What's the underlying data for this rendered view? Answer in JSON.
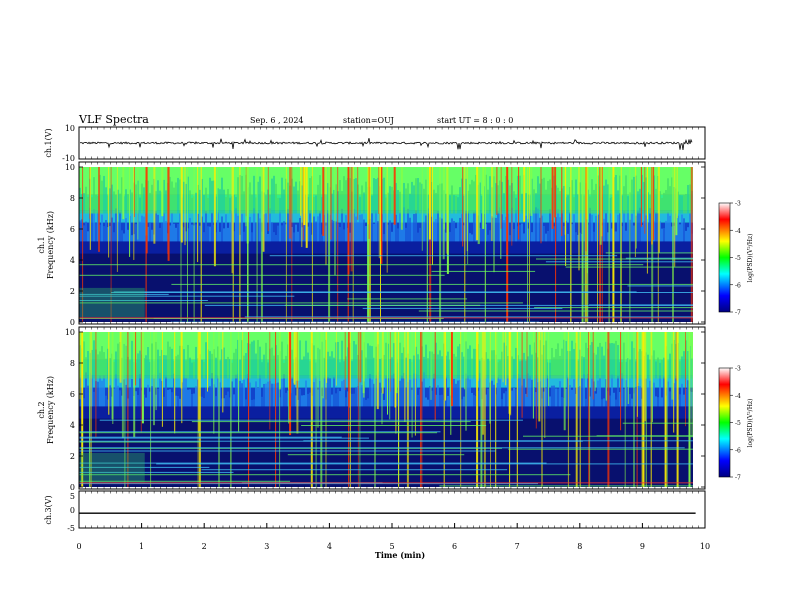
{
  "header": {
    "title": "VLF Spectra",
    "date": "Sep. 6 , 2024",
    "station": "station=OUJ",
    "start": "start UT =  8 : 0 : 0"
  },
  "chart_data": [
    {
      "type": "line",
      "id": "ch1-waveform",
      "ylabel": "ch.1(V)",
      "ylim": [
        -10,
        10
      ],
      "y_ticks": [
        "10",
        "-10"
      ],
      "description_values": {
        "baseline": 0,
        "noise_amplitude": 1.2
      }
    },
    {
      "type": "heatmap",
      "id": "ch1-spectrogram",
      "ylabel": "ch.1\nFrequency (kHz)",
      "ylabel_lines": [
        "ch.1",
        "Frequency (kHz)"
      ],
      "ylim": [
        0,
        10
      ],
      "y_ticks": [
        "0",
        "2",
        "4",
        "6",
        "8",
        "10"
      ],
      "colorbar": {
        "label": "log(PSD)(V²/Hz)",
        "range": [
          -7,
          -3
        ],
        "ticks": [
          "-3",
          "-4",
          "-5",
          "-6",
          "-7"
        ],
        "colors": [
          "#ffffff",
          "#ff0000",
          "#ffff00",
          "#00ff00",
          "#00ffff",
          "#0000ff",
          "#000080"
        ]
      }
    },
    {
      "type": "heatmap",
      "id": "ch2-spectrogram",
      "ylabel": "ch.2\nFrequency (kHz)",
      "ylabel_lines": [
        "ch.2",
        "Frequency (kHz)"
      ],
      "ylim": [
        0,
        10
      ],
      "y_ticks": [
        "0",
        "2",
        "4",
        "6",
        "8",
        "10"
      ],
      "colorbar": {
        "label": "log(PSD)(V²/Hz)",
        "range": [
          -7,
          -3
        ],
        "ticks": [
          "-3",
          "-4",
          "-5",
          "-6",
          "-7"
        ],
        "colors": [
          "#ffffff",
          "#ff0000",
          "#ffff00",
          "#00ff00",
          "#00ffff",
          "#0000ff",
          "#000080"
        ]
      }
    },
    {
      "type": "line",
      "id": "ch3-waveform",
      "ylabel": "ch.3(V)",
      "ylim": [
        -5,
        5
      ],
      "y_ticks": [
        "5",
        "0",
        "-5"
      ],
      "x": [
        0,
        9.85
      ],
      "y": [
        -1,
        -1
      ]
    }
  ],
  "xaxis": {
    "label": "Time (min)",
    "xlim": [
      0,
      10
    ],
    "ticks": [
      "0",
      "1",
      "2",
      "3",
      "4",
      "5",
      "6",
      "7",
      "8",
      "9",
      "10"
    ]
  },
  "colors": {
    "axis": "#000000",
    "background": "#ffffff"
  }
}
